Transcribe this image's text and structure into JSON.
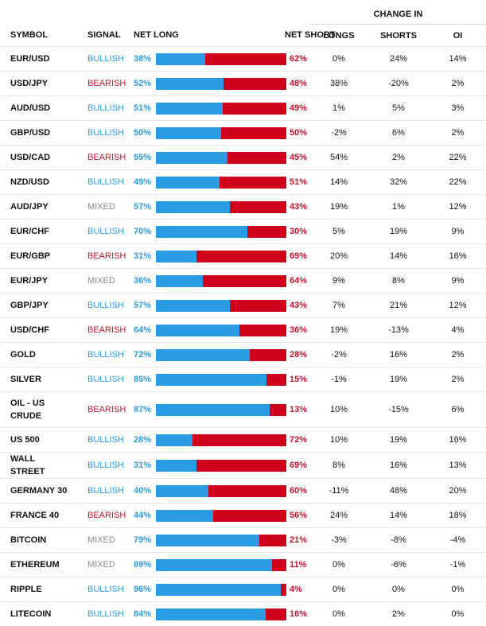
{
  "header": {
    "symbol": "SYMBOL",
    "signal": "SIGNAL",
    "net_long": "NET LONG",
    "net_short": "NET SHORT",
    "change_in": "CHANGE IN",
    "longs": "LONGS",
    "shorts": "SHORTS",
    "oi": "OI"
  },
  "colors": {
    "bullish": "#2b9bdf",
    "bearish": "#c8102e",
    "mixed": "#8a8a8a",
    "long_bar": "#2a9ce3",
    "short_bar": "#d0021b"
  },
  "rows": [
    {
      "symbol": "EUR/USD",
      "signal": "BULLISH",
      "net_long": "38%",
      "net_short": "62%",
      "long_value": 38,
      "longs": "0%",
      "shorts": "24%",
      "oi": "14%"
    },
    {
      "symbol": "USD/JPY",
      "signal": "BEARISH",
      "net_long": "52%",
      "net_short": "48%",
      "long_value": 52,
      "longs": "38%",
      "shorts": "-20%",
      "oi": "2%"
    },
    {
      "symbol": "AUD/USD",
      "signal": "BULLISH",
      "net_long": "51%",
      "net_short": "49%",
      "long_value": 51,
      "longs": "1%",
      "shorts": "5%",
      "oi": "3%"
    },
    {
      "symbol": "GBP/USD",
      "signal": "BULLISH",
      "net_long": "50%",
      "net_short": "50%",
      "long_value": 50,
      "longs": "-2%",
      "shorts": "6%",
      "oi": "2%"
    },
    {
      "symbol": "USD/CAD",
      "signal": "BEARISH",
      "net_long": "55%",
      "net_short": "45%",
      "long_value": 55,
      "longs": "54%",
      "shorts": "2%",
      "oi": "22%"
    },
    {
      "symbol": "NZD/USD",
      "signal": "BULLISH",
      "net_long": "49%",
      "net_short": "51%",
      "long_value": 49,
      "longs": "14%",
      "shorts": "32%",
      "oi": "22%"
    },
    {
      "symbol": "AUD/JPY",
      "signal": "MIXED",
      "net_long": "57%",
      "net_short": "43%",
      "long_value": 57,
      "longs": "19%",
      "shorts": "1%",
      "oi": "12%"
    },
    {
      "symbol": "EUR/CHF",
      "signal": "BULLISH",
      "net_long": "70%",
      "net_short": "30%",
      "long_value": 70,
      "longs": "5%",
      "shorts": "19%",
      "oi": "9%"
    },
    {
      "symbol": "EUR/GBP",
      "signal": "BEARISH",
      "net_long": "31%",
      "net_short": "69%",
      "long_value": 31,
      "longs": "20%",
      "shorts": "14%",
      "oi": "16%"
    },
    {
      "symbol": "EUR/JPY",
      "signal": "MIXED",
      "net_long": "36%",
      "net_short": "64%",
      "long_value": 36,
      "longs": "9%",
      "shorts": "8%",
      "oi": "9%"
    },
    {
      "symbol": "GBP/JPY",
      "signal": "BULLISH",
      "net_long": "57%",
      "net_short": "43%",
      "long_value": 57,
      "longs": "7%",
      "shorts": "21%",
      "oi": "12%"
    },
    {
      "symbol": "USD/CHF",
      "signal": "BEARISH",
      "net_long": "64%",
      "net_short": "36%",
      "long_value": 64,
      "longs": "19%",
      "shorts": "-13%",
      "oi": "4%"
    },
    {
      "symbol": "GOLD",
      "signal": "BULLISH",
      "net_long": "72%",
      "net_short": "28%",
      "long_value": 72,
      "longs": "-2%",
      "shorts": "16%",
      "oi": "2%"
    },
    {
      "symbol": "SILVER",
      "signal": "BULLISH",
      "net_long": "85%",
      "net_short": "15%",
      "long_value": 85,
      "longs": "-1%",
      "shorts": "19%",
      "oi": "2%"
    },
    {
      "symbol": "OIL - US CRUDE",
      "signal": "BEARISH",
      "net_long": "87%",
      "net_short": "13%",
      "long_value": 87,
      "longs": "10%",
      "shorts": "-15%",
      "oi": "6%"
    },
    {
      "symbol": "US 500",
      "signal": "BULLISH",
      "net_long": "28%",
      "net_short": "72%",
      "long_value": 28,
      "longs": "10%",
      "shorts": "19%",
      "oi": "16%"
    },
    {
      "symbol": "WALL STREET",
      "signal": "BULLISH",
      "net_long": "31%",
      "net_short": "69%",
      "long_value": 31,
      "longs": "8%",
      "shorts": "16%",
      "oi": "13%"
    },
    {
      "symbol": "GERMANY 30",
      "signal": "BULLISH",
      "net_long": "40%",
      "net_short": "60%",
      "long_value": 40,
      "longs": "-11%",
      "shorts": "48%",
      "oi": "20%"
    },
    {
      "symbol": "FRANCE 40",
      "signal": "BEARISH",
      "net_long": "44%",
      "net_short": "56%",
      "long_value": 44,
      "longs": "24%",
      "shorts": "14%",
      "oi": "18%"
    },
    {
      "symbol": "BITCOIN",
      "signal": "MIXED",
      "net_long": "79%",
      "net_short": "21%",
      "long_value": 79,
      "longs": "-3%",
      "shorts": "-8%",
      "oi": "-4%"
    },
    {
      "symbol": "ETHEREUM",
      "signal": "MIXED",
      "net_long": "89%",
      "net_short": "11%",
      "long_value": 89,
      "longs": "0%",
      "shorts": "-6%",
      "oi": "-1%"
    },
    {
      "symbol": "RIPPLE",
      "signal": "BULLISH",
      "net_long": "96%",
      "net_short": "4%",
      "long_value": 96,
      "longs": "0%",
      "shorts": "0%",
      "oi": "0%"
    },
    {
      "symbol": "LITECOIN",
      "signal": "BULLISH",
      "net_long": "84%",
      "net_short": "16%",
      "long_value": 84,
      "longs": "0%",
      "shorts": "2%",
      "oi": "0%"
    }
  ]
}
